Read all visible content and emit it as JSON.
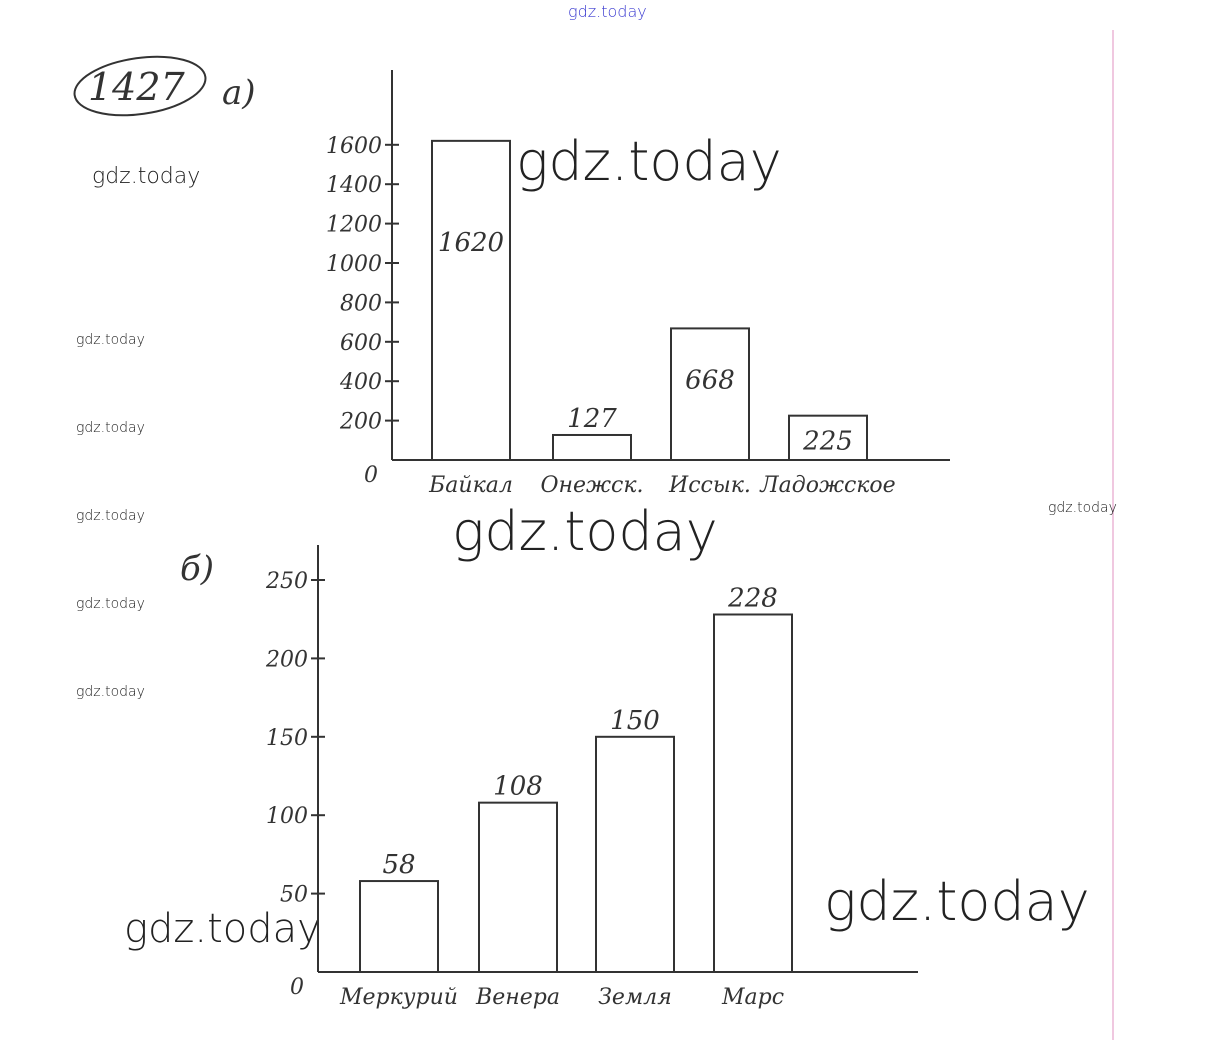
{
  "problem_number": "1427",
  "watermark_top": "gdz.today",
  "watermarks": [
    "gdz.today",
    "gdz.today",
    "gdz.today",
    "gdz.today",
    "gdz.today",
    "gdz.today",
    "gdz.today",
    "gdz.today",
    "gdz.today",
    "gdz.today",
    "gdz.today",
    "gdz.today"
  ],
  "colors": {
    "ink": "#333333",
    "watermark_top": "#3a3ad0"
  },
  "chart_data": [
    {
      "type": "bar",
      "part_label": "а)",
      "categories": [
        "Байкал",
        "Онежск.",
        "Иссык.",
        "Ладожское"
      ],
      "values": [
        1620,
        127,
        668,
        225
      ],
      "data_labels": [
        "1620",
        "127",
        "668",
        "225"
      ],
      "yticks": [
        "0",
        "200",
        "400",
        "600",
        "800",
        "1000",
        "1200",
        "1400",
        "1600"
      ],
      "ytick_values": [
        0,
        200,
        400,
        600,
        800,
        1000,
        1200,
        1400,
        1600
      ],
      "ylim": [
        0,
        2000
      ],
      "grid": false
    },
    {
      "type": "bar",
      "part_label": "б)",
      "categories": [
        "Меркурий",
        "Венера",
        "Земля",
        "Марс"
      ],
      "values": [
        58,
        108,
        150,
        228
      ],
      "data_labels": [
        "58",
        "108",
        "150",
        "228"
      ],
      "yticks": [
        "0",
        "50",
        "100",
        "150",
        "200",
        "250"
      ],
      "ytick_values": [
        0,
        50,
        100,
        150,
        200,
        250
      ],
      "ylim": [
        0,
        275
      ],
      "grid": false
    }
  ]
}
